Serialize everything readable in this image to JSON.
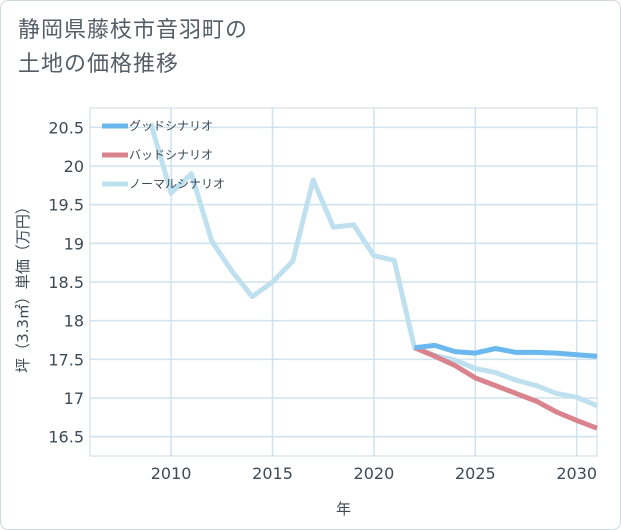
{
  "chart_data": {
    "type": "line",
    "title": [
      "静岡県藤枝市音羽町の",
      "土地の価格推移"
    ],
    "xlabel": "年",
    "ylabel": "坪（3.3㎡）単価（万円）",
    "xlim": [
      2006,
      2031
    ],
    "ylim": [
      16.25,
      20.75
    ],
    "xticks": [
      2010,
      2015,
      2020,
      2025,
      2030
    ],
    "yticks": [
      16.5,
      17,
      17.5,
      18,
      18.5,
      19,
      19.5,
      20,
      20.5
    ],
    "ytick_labels": [
      "16.5",
      "17",
      "17.5",
      "18",
      "18.5",
      "19",
      "19.5",
      "20",
      "20.5"
    ],
    "grid": true,
    "legend_position": "top-left",
    "series": [
      {
        "name": "グッドシナリオ",
        "color": "#6bb8ef",
        "x": [
          2022,
          2023,
          2024,
          2025,
          2026,
          2027,
          2028,
          2029,
          2030,
          2031
        ],
        "y": [
          17.65,
          17.68,
          17.6,
          17.58,
          17.64,
          17.59,
          17.59,
          17.58,
          17.56,
          17.54
        ]
      },
      {
        "name": "バッドシナリオ",
        "color": "#d9848d",
        "x": [
          2022,
          2023,
          2024,
          2025,
          2026,
          2027,
          2028,
          2029,
          2030,
          2031
        ],
        "y": [
          17.65,
          17.54,
          17.42,
          17.26,
          17.16,
          17.06,
          16.96,
          16.82,
          16.71,
          16.61
        ]
      },
      {
        "name": "ノーマルシナリオ",
        "color": "#bfe0ee",
        "x": [
          2009,
          2010,
          2011,
          2012,
          2013,
          2014,
          2015,
          2016,
          2017,
          2018,
          2019,
          2020,
          2021,
          2022,
          2023,
          2024,
          2025,
          2026,
          2027,
          2028,
          2029,
          2030,
          2031
        ],
        "y": [
          20.55,
          19.65,
          19.9,
          19.03,
          18.64,
          18.31,
          18.5,
          18.77,
          19.82,
          19.21,
          19.24,
          18.84,
          18.78,
          17.65,
          17.55,
          17.49,
          17.38,
          17.33,
          17.23,
          17.16,
          17.06,
          17.01,
          16.9
        ]
      }
    ]
  }
}
